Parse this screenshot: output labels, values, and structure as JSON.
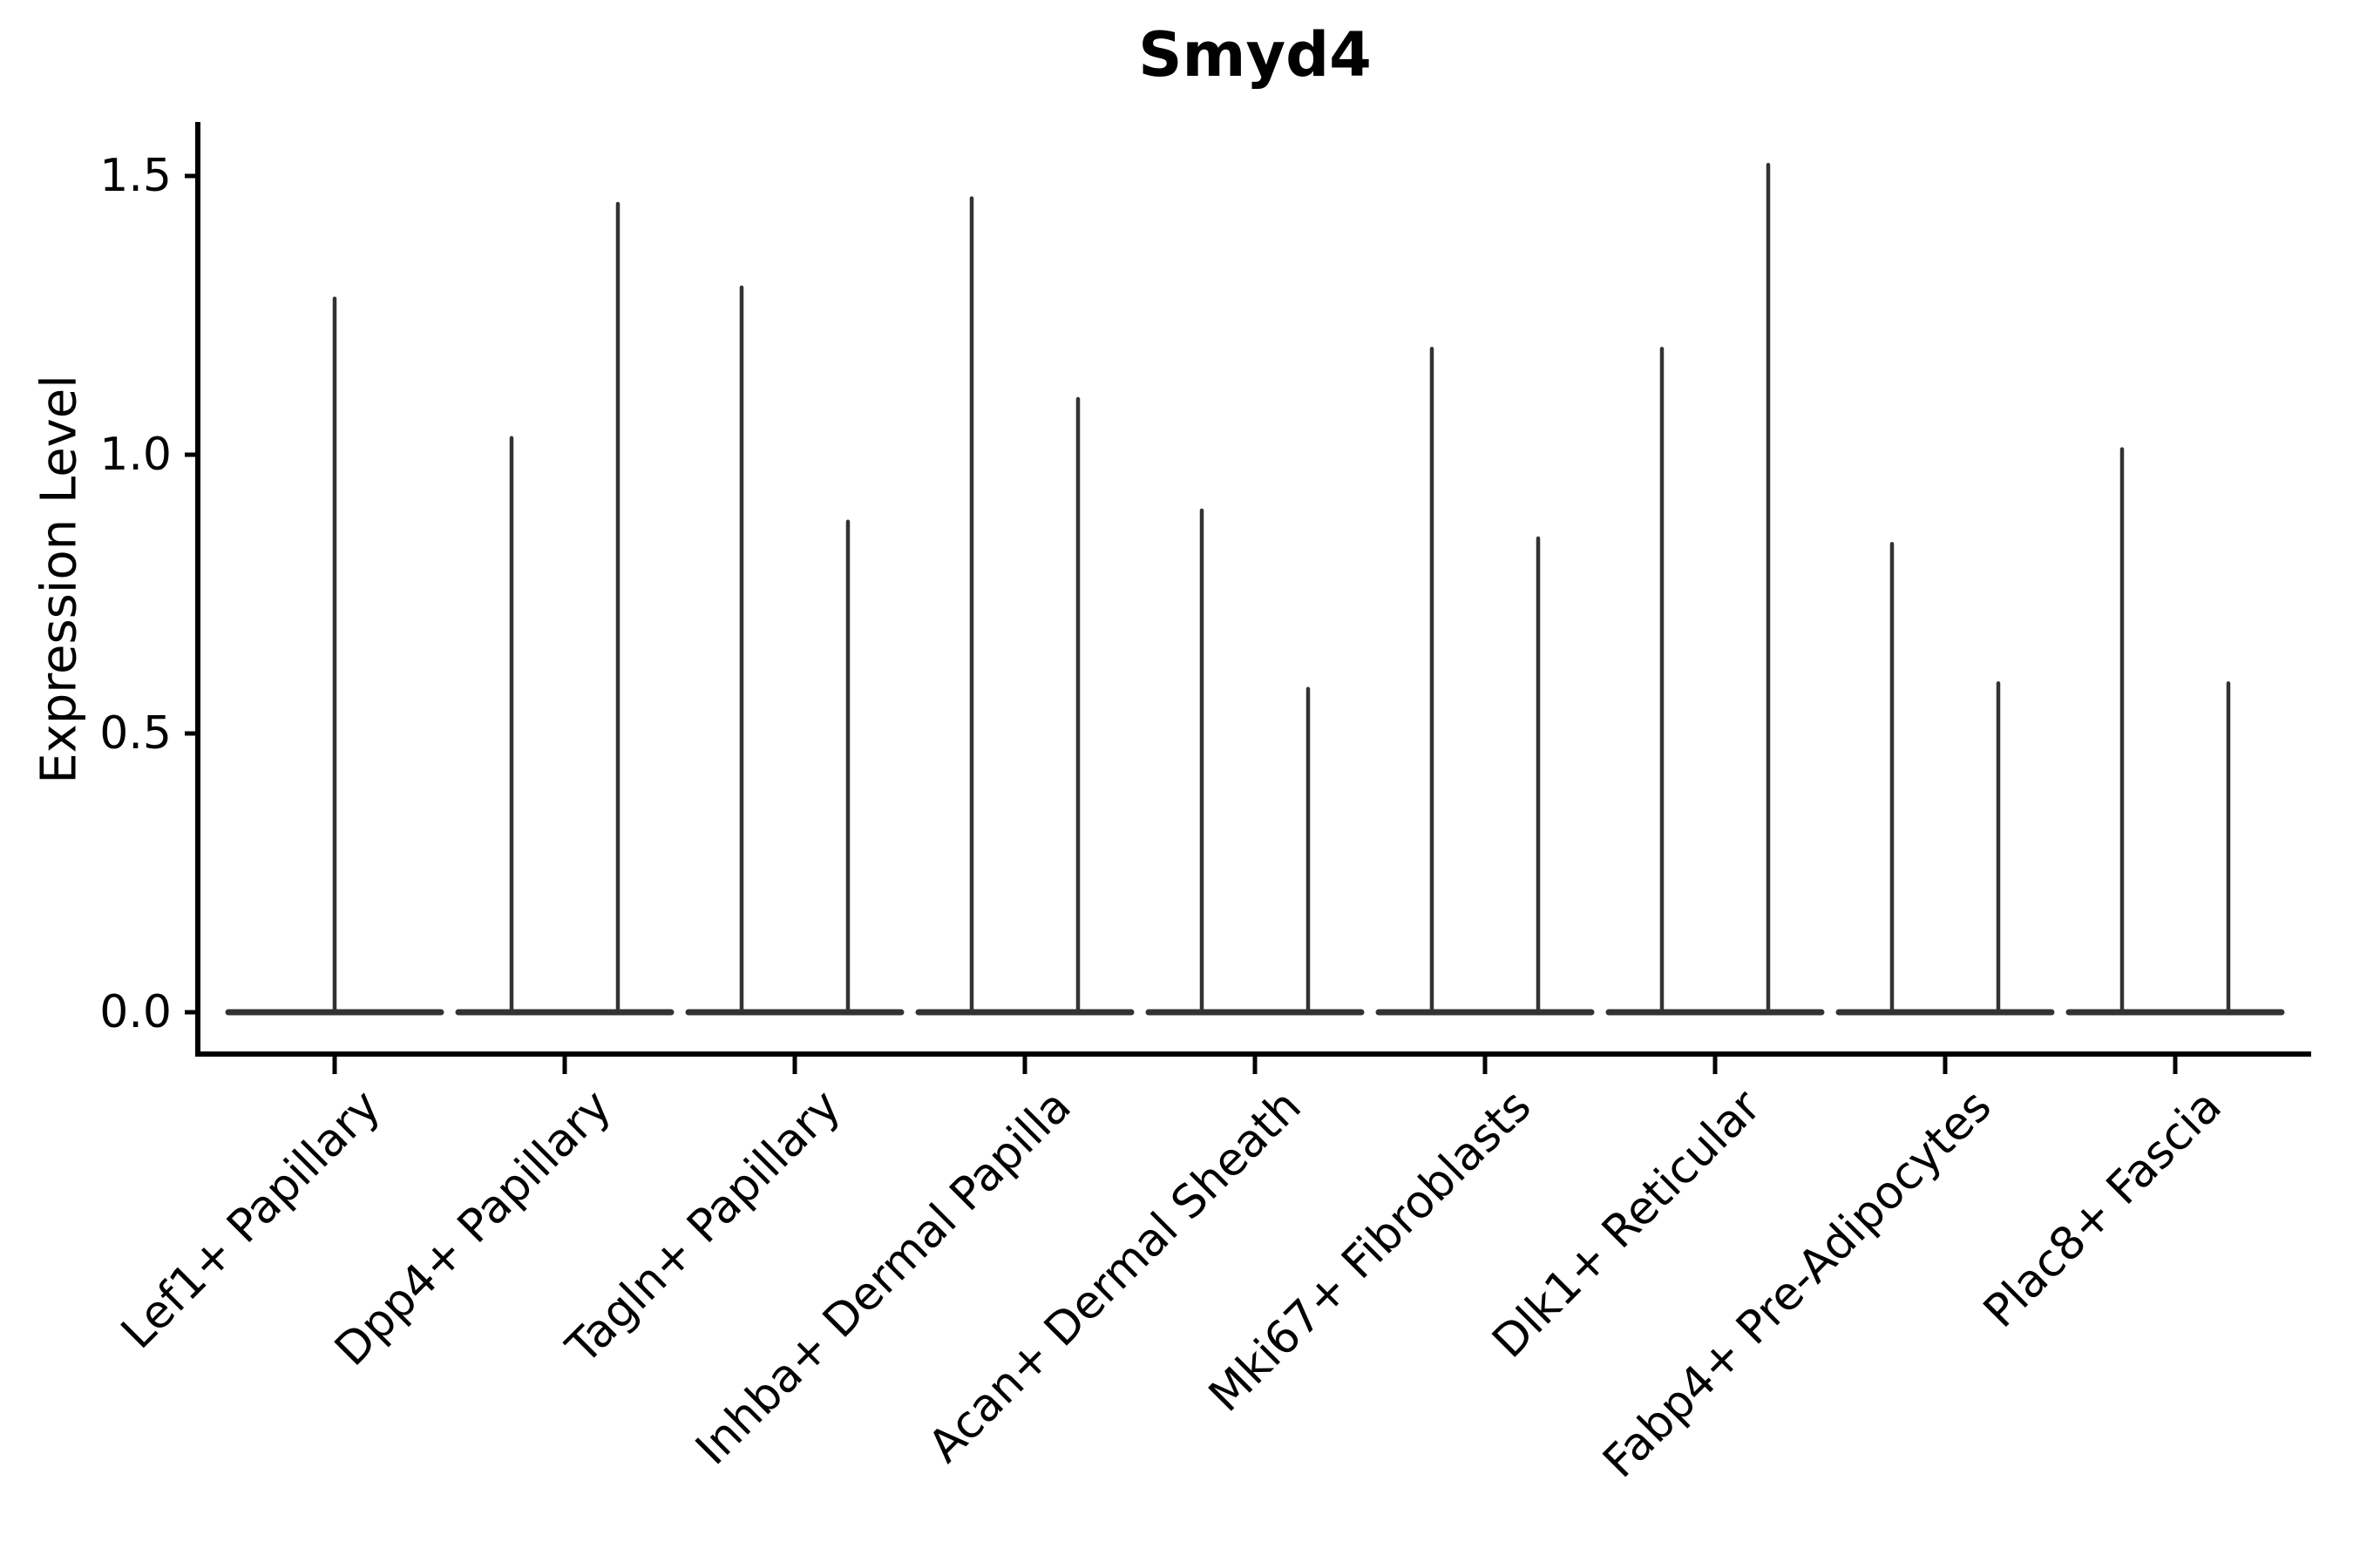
{
  "title": "Smyd4",
  "y_axis": {
    "label": "Expression Level",
    "tick_labels": [
      "0.0",
      "0.5",
      "1.0",
      "1.5"
    ],
    "tick_values": [
      0.0,
      0.5,
      1.0,
      1.5
    ]
  },
  "chart_data": {
    "type": "violin",
    "title": "Smyd4",
    "xlabel": "",
    "ylabel": "Expression Level",
    "ylim": [
      -0.075,
      1.6
    ],
    "yticks": [
      0.0,
      0.5,
      1.0,
      1.5
    ],
    "grid": false,
    "legend": "none",
    "categories": [
      "Lef1+ Papillary",
      "Dpp4+ Papillary",
      "Tagln+ Papillary",
      "Inhba+ Dermal Papilla",
      "Acan+ Dermal Sheath",
      "Mki67+ Fibroblasts",
      "Dlk1+ Reticular",
      "Fabp4+ Pre-Adipocytes",
      "Plac8+ Fascia"
    ],
    "violins": [
      {
        "category": "Lef1+ Papillary",
        "baseline_value": 0.0,
        "maxima": [
          1.28
        ]
      },
      {
        "category": "Dpp4+ Papillary",
        "baseline_value": 0.0,
        "maxima": [
          1.03,
          1.45
        ]
      },
      {
        "category": "Tagln+ Papillary",
        "baseline_value": 0.0,
        "maxima": [
          1.3,
          0.88
        ]
      },
      {
        "category": "Inhba+ Dermal Papilla",
        "baseline_value": 0.0,
        "maxima": [
          1.46,
          1.1
        ]
      },
      {
        "category": "Acan+ Dermal Sheath",
        "baseline_value": 0.0,
        "maxima": [
          0.9,
          0.58
        ]
      },
      {
        "category": "Mki67+ Fibroblasts",
        "baseline_value": 0.0,
        "maxima": [
          1.19,
          0.85
        ]
      },
      {
        "category": "Dlk1+ Reticular",
        "baseline_value": 0.0,
        "maxima": [
          1.19,
          1.52
        ]
      },
      {
        "category": "Fabp4+ Pre-Adipocytes",
        "baseline_value": 0.0,
        "maxima": [
          0.84,
          0.59
        ]
      },
      {
        "category": "Plac8+ Fascia",
        "baseline_value": 0.0,
        "maxima": [
          1.01,
          0.59
        ]
      }
    ],
    "notes": "Each category shows thin spike-shaped violin(s): a wide flat base at expression 0 and a narrow tail up to the max value. First category has a single centered violin; all others have two side-by-side violins."
  },
  "colors": {
    "background": "#ffffff",
    "violin_stroke": "#333333",
    "axis": "#000000",
    "text": "#000000"
  }
}
